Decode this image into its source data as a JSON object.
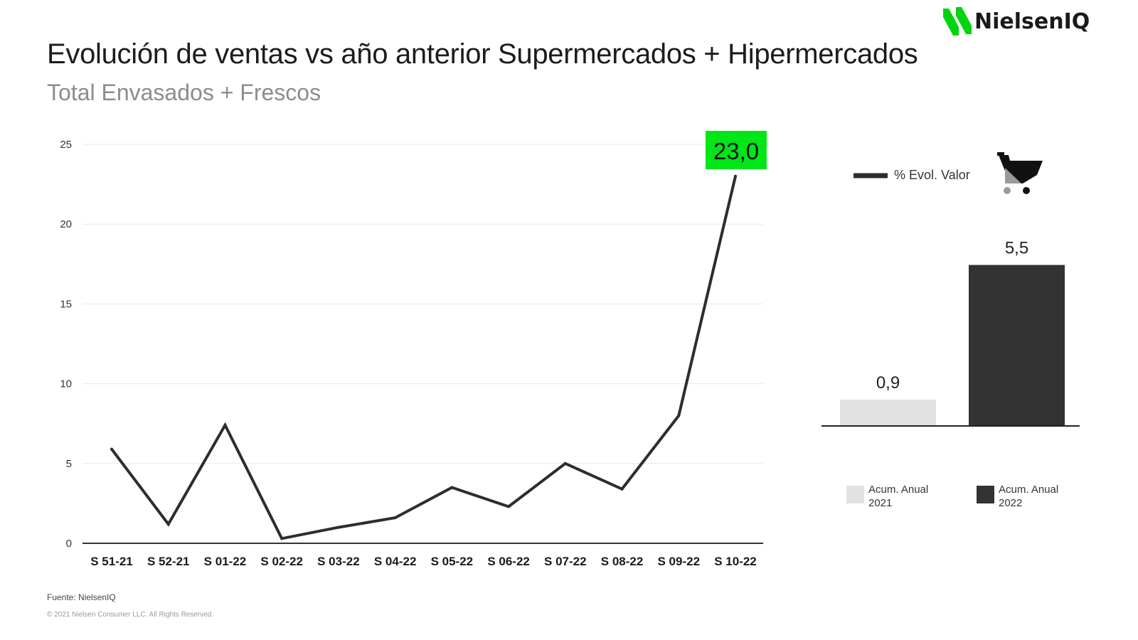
{
  "header": {
    "brand": "NielsenIQ",
    "title": "Evolución de ventas vs año anterior Supermercados + Hipermercados",
    "subtitle": "Total Envasados + Frescos"
  },
  "footer": {
    "source": "Fuente: NielsenIQ",
    "copyright": "© 2021 Nielsen Consumer LLC. All Rights Reserved."
  },
  "colors": {
    "line": "#2d2d2d",
    "highlight": "#00e617",
    "bar_2021": "#e2e2e2",
    "bar_2022": "#333333",
    "brand_green": "#00d40f"
  },
  "chart_data": [
    {
      "type": "line",
      "title": "",
      "xlabel": "",
      "ylabel": "",
      "categories": [
        "S 51-21",
        "S 52-21",
        "S 01-22",
        "S 02-22",
        "S 03-22",
        "S 04-22",
        "S 05-22",
        "S 06-22",
        "S 07-22",
        "S 08-22",
        "S 09-22",
        "S 10-22"
      ],
      "series": [
        {
          "name": "% Evol. Valor",
          "values": [
            5.9,
            1.2,
            7.4,
            0.3,
            1.0,
            1.6,
            3.5,
            2.3,
            5.0,
            3.4,
            8.0,
            23.0
          ]
        }
      ],
      "yticks": [
        "0",
        "5",
        "10",
        "15",
        "20",
        "25"
      ],
      "ylim": [
        0,
        25
      ],
      "grid": true,
      "highlight_label": "23,0",
      "legend": {
        "label": "% Evol. Valor",
        "placement": "top-right",
        "icon": "shopping-cart-icon"
      }
    },
    {
      "type": "bar",
      "categories": [
        "Acum. Anual 2021",
        "Acum. Anual 2022"
      ],
      "values": [
        0.9,
        5.5
      ],
      "data_labels": [
        "0,9",
        "5,5"
      ],
      "legend": [
        {
          "line1": "Acum. Anual",
          "line2": "2021"
        },
        {
          "line1": "Acum. Anual",
          "line2": "2022"
        }
      ]
    }
  ]
}
